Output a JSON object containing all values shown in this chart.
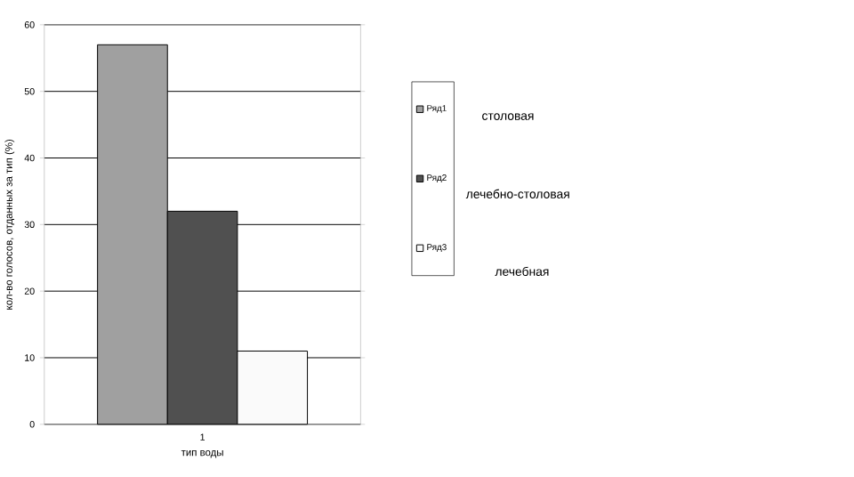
{
  "chart_data": {
    "type": "bar",
    "xlabel": "тип воды",
    "ylabel": "кол-во голосов, отданных за тип (%)",
    "categories": [
      "1"
    ],
    "series": [
      {
        "name": "Ряд1",
        "color": "#a0a0a0",
        "values": [
          57
        ]
      },
      {
        "name": "Ряд2",
        "color": "#505050",
        "values": [
          32
        ]
      },
      {
        "name": "Ряд3",
        "color": "#fafafa",
        "values": [
          11
        ]
      }
    ],
    "ylim": [
      0,
      60
    ],
    "yticks": [
      0,
      10,
      20,
      30,
      40,
      50,
      60
    ],
    "grid": "y",
    "legend": "right",
    "annotations": [
      "столовая",
      "лечебно-столовая",
      "лечебная"
    ]
  }
}
